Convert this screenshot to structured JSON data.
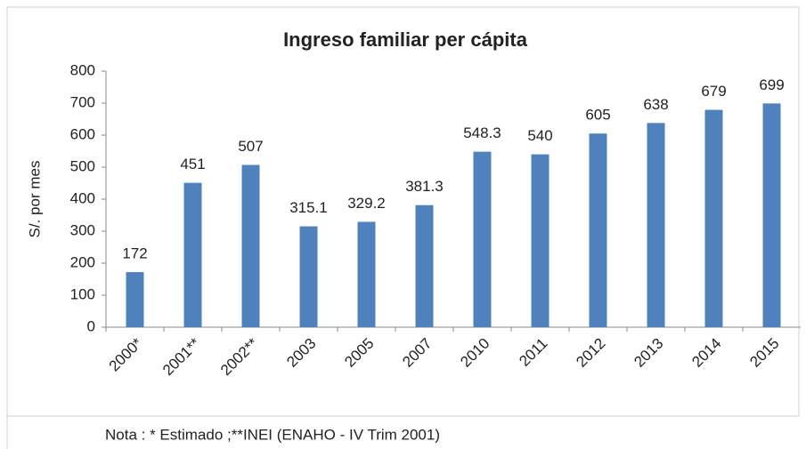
{
  "chart_data": {
    "type": "bar",
    "title": "Ingreso familiar per cápita",
    "y_label": "S/.  por mes",
    "categories": [
      "2000*",
      "2001**",
      "2002**",
      "2003",
      "2005",
      "2007",
      "2010",
      "2011",
      "2012",
      "2013",
      "2014",
      "2015"
    ],
    "values": [
      172,
      451,
      507,
      315.1,
      329.2,
      381.3,
      548.3,
      540,
      605,
      638,
      679,
      699
    ],
    "color": "#4f81bd",
    "ylim": [
      0,
      800
    ],
    "yticks": [
      0,
      100,
      200,
      300,
      400,
      500,
      600,
      700,
      800
    ],
    "grid": false,
    "note": "Nota : * Estimado ;**INEI (ENAHO - IV Trim 2001)"
  }
}
